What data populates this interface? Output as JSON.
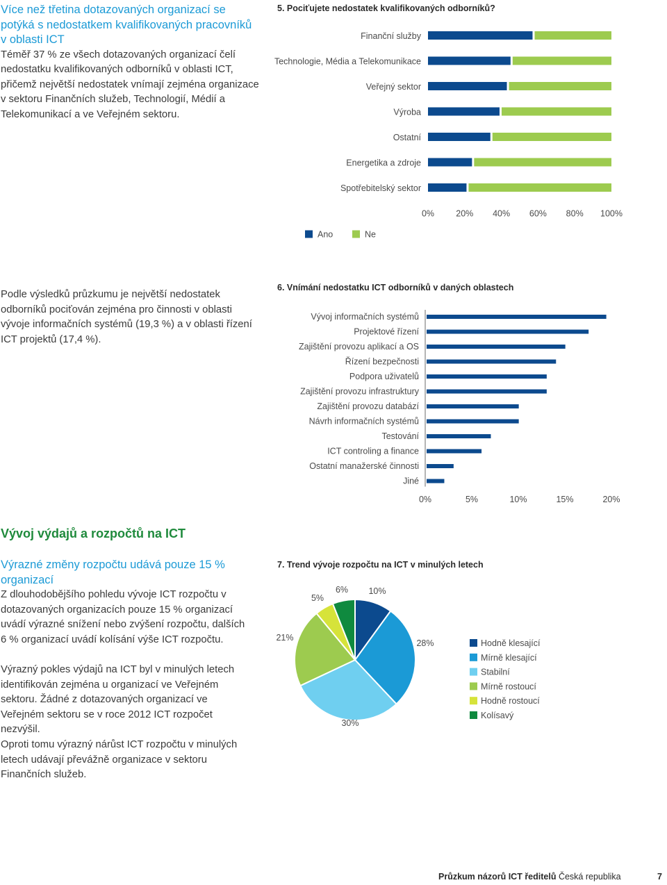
{
  "intro": {
    "heading": "Více než třetina dotazovaných organizací se potýká s nedostatkem kvalifikovaných pracovníků v oblasti ICT",
    "body": "Téměř 37 % ze všech dotazovaných organizací čelí nedostatku kvalifikovaných odborníků v oblasti ICT, přičemž největší nedostatek vnímají zejména organizace v sektoru Finančních služeb, Technologií, Médií a Telekomunikací a ve Veřejném sektoru."
  },
  "para2": "Podle výsledků průzkumu je největší nedostatek odborníků pociťován zejména pro činnosti v oblasti vývoje informačních systémů (19,3 %) a v oblasti řízení ICT projektů (17,4 %).",
  "section": {
    "heading": "Vývoj výdajů a rozpočtů na ICT",
    "subheading": "Výrazné změny rozpočtu udává pouze 15 % organizací",
    "p1": "Z dlouhodobějšího pohledu vývoje ICT rozpočtu v dotazovaných organizacích pouze 15 % organizací uvádí výrazné snížení nebo zvýšení rozpočtu, dalších 6 % organizací uvádí kolísání výše ICT rozpočtu.",
    "p2": "Výrazný pokles výdajů na ICT byl v minulých letech identifikován zejména u organizací ve Veřejném sektoru. Žádné z dotazovaných organizací ve Veřejném sektoru se v roce 2012 ICT rozpočet nezvýšil.",
    "p3": "Oproti tomu výrazný nárůst ICT rozpočtu v minulých letech udávají převážně organizace v sektoru Finančních služeb."
  },
  "footer": {
    "bold": "Průzkum názorů ICT ředitelů",
    "normal": "Česká republika",
    "page": "7"
  },
  "colors": {
    "ano": "#0c4a8e",
    "ne": "#9dcb4f",
    "bar6": "#0c4a8e"
  },
  "chart_data": [
    {
      "type": "bar",
      "orientation": "horizontal",
      "stacked": true,
      "title": "5. Pociťujete nedostatek kvalifikovaných odborníků?",
      "categories": [
        "Finanční služby",
        "Technologie, Média a Telekomunikace",
        "Veřejný sektor",
        "Výroba",
        "Ostatní",
        "Energetika a zdroje",
        "Spotřebitelský sektor"
      ],
      "series": [
        {
          "name": "Ano",
          "values": [
            57,
            45,
            43,
            39,
            34,
            24,
            21
          ]
        },
        {
          "name": "Ne",
          "values": [
            43,
            55,
            57,
            61,
            66,
            76,
            79
          ]
        }
      ],
      "xticks": [
        "0%",
        "20%",
        "40%",
        "60%",
        "80%",
        "100%"
      ],
      "xlim": [
        0,
        100
      ],
      "legend": "bottom"
    },
    {
      "type": "bar",
      "orientation": "horizontal",
      "title": "6. Vnímání nedostatku ICT odborníků v daných oblastech",
      "categories": [
        "Vývoj informačních systémů",
        "Projektové řízení",
        "Zajištění provozu aplikací a OS",
        "Řízení bezpečnosti",
        "Podpora uživatelů",
        "Zajištění provozu infrastruktury",
        "Zajištění provozu databází",
        "Návrh informačních systémů",
        "Testování",
        "ICT controling a finance",
        "Ostatní manažerské činnosti",
        "Jiné"
      ],
      "values": [
        19.3,
        17.4,
        14.9,
        13.9,
        12.9,
        12.9,
        9.9,
        9.9,
        6.9,
        5.9,
        2.9,
        1.9
      ],
      "xticks": [
        "0%",
        "5%",
        "10%",
        "15%",
        "20%"
      ],
      "xlim": [
        0,
        20
      ]
    },
    {
      "type": "pie",
      "title": "7. Trend vývoje rozpočtu na ICT v minulých letech",
      "labels": [
        "Hodně klesající",
        "Mírně klesající",
        "Stabilní",
        "Mírně rostoucí",
        "Hodně rostoucí",
        "Kolísavý"
      ],
      "values": [
        10,
        28,
        30,
        21,
        5,
        6
      ],
      "value_labels": [
        "10%",
        "28%",
        "30%",
        "21%",
        "5%",
        "6%"
      ],
      "colors": [
        "#0c4a8e",
        "#1b9ad6",
        "#6fcff0",
        "#9dcb4f",
        "#d6e33a",
        "#0f8a3f"
      ],
      "legend": "right"
    }
  ]
}
